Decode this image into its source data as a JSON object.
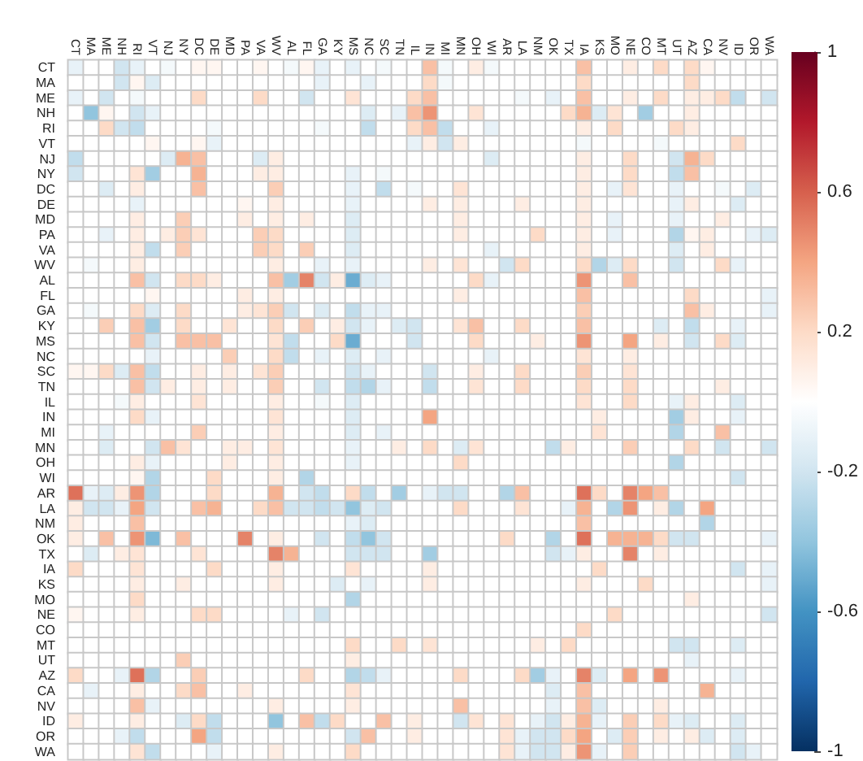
{
  "chart_data": {
    "type": "heatmap",
    "categories": [
      "CT",
      "MA",
      "ME",
      "NH",
      "RI",
      "VT",
      "NJ",
      "NY",
      "DC",
      "DE",
      "MD",
      "PA",
      "VA",
      "WV",
      "AL",
      "FL",
      "GA",
      "KY",
      "MS",
      "NC",
      "SC",
      "TN",
      "IL",
      "IN",
      "MI",
      "MN",
      "OH",
      "WI",
      "AR",
      "LA",
      "NM",
      "OK",
      "TX",
      "IA",
      "KS",
      "MO",
      "NE",
      "CO",
      "MT",
      "UT",
      "AZ",
      "CA",
      "NV",
      "ID",
      "OR",
      "WA"
    ],
    "y_categories": [
      "CT",
      "MA",
      "ME",
      "NH",
      "RI",
      "VT",
      "NJ",
      "NY",
      "DC",
      "DE",
      "MD",
      "PA",
      "VA",
      "WV",
      "AL",
      "FL",
      "GA",
      "KY",
      "MS",
      "NC",
      "SC",
      "TN",
      "IL",
      "IN",
      "MI",
      "MN",
      "OH",
      "WI",
      "AR",
      "LA",
      "NM",
      "OK",
      "TX",
      "IA",
      "KS",
      "MO",
      "NE",
      "CO",
      "MT",
      "UT",
      "AZ",
      "CA",
      "NV",
      "ID",
      "OR",
      "WA"
    ],
    "clim": [
      -1,
      1
    ],
    "cticks": [
      -1,
      -0.6,
      -0.2,
      0.2,
      0.6,
      1
    ],
    "cells": [
      [
        -0.1,
        0,
        0,
        -0.2,
        -0.1,
        0,
        -0.05,
        0,
        0.05,
        0.05,
        0,
        0,
        0.05,
        0,
        -0.05,
        0.05,
        -0.1,
        0,
        -0.1,
        0,
        -0.05,
        0,
        0,
        0.3,
        -0.05,
        0,
        0.1,
        -0.05,
        0,
        0,
        0,
        0,
        0,
        0.3,
        0,
        0,
        0.1,
        0,
        0.2,
        0,
        0.2,
        0.05,
        0,
        0,
        0,
        0
      ],
      [
        0,
        0,
        0,
        -0.2,
        0.05,
        -0.15,
        0,
        0,
        0,
        0,
        0,
        0,
        0,
        0,
        0,
        0,
        -0.1,
        0,
        0,
        -0.1,
        0,
        0,
        0,
        0.2,
        -0.05,
        0,
        0,
        0,
        0,
        0,
        0,
        0,
        0,
        0.2,
        0,
        0,
        0,
        0,
        0,
        0,
        0.2,
        0,
        0,
        0,
        0,
        0
      ],
      [
        -0.1,
        0,
        -0.2,
        0,
        -0.05,
        0,
        0,
        0,
        0.2,
        0,
        0,
        0,
        0.2,
        0,
        0,
        -0.2,
        0,
        0,
        0.15,
        0,
        0,
        0,
        0.2,
        0.3,
        0,
        0,
        0,
        0,
        0,
        -0.05,
        0,
        -0.1,
        0,
        0.3,
        0,
        0,
        0.1,
        0,
        0.2,
        0,
        0.1,
        0.1,
        0.2,
        -0.25,
        0,
        -0.2
      ],
      [
        0,
        -0.4,
        0.05,
        0,
        -0.2,
        -0.1,
        0,
        0,
        0,
        0,
        0,
        0,
        0,
        0,
        0,
        0,
        0,
        0,
        0,
        -0.15,
        0,
        -0.1,
        0.3,
        0.45,
        0,
        0,
        0.15,
        0,
        0,
        0,
        0,
        0,
        0.2,
        0.35,
        -0.15,
        0.15,
        0,
        -0.35,
        0,
        0,
        0.1,
        0,
        0,
        0,
        0,
        0
      ],
      [
        0,
        0,
        0.2,
        -0.2,
        -0.25,
        0,
        0,
        0,
        0,
        -0.05,
        0,
        0,
        0,
        0,
        0,
        0,
        -0.05,
        0,
        0,
        -0.25,
        0,
        0,
        0.2,
        0.3,
        -0.25,
        0,
        0,
        -0.1,
        0,
        0,
        0,
        0,
        0,
        0.1,
        0,
        0.2,
        0,
        0,
        0,
        0.2,
        0.1,
        0,
        0,
        0,
        0,
        0
      ],
      [
        0,
        0,
        0,
        0,
        0,
        0.05,
        0,
        0,
        0.05,
        -0.1,
        0,
        0,
        0,
        0,
        0,
        0,
        0,
        0,
        0,
        0,
        0,
        0,
        -0.1,
        0.1,
        -0.2,
        0.1,
        0,
        0,
        0,
        0,
        0,
        0,
        0,
        -0.05,
        0,
        0,
        0,
        0,
        -0.05,
        0,
        0,
        0,
        0,
        0.2,
        0,
        0
      ],
      [
        -0.25,
        0,
        0,
        0,
        0,
        0,
        -0.15,
        0.35,
        0.3,
        0,
        0,
        0,
        -0.15,
        0.1,
        0,
        0,
        0,
        0,
        0,
        0,
        0,
        0,
        0,
        0,
        0,
        0,
        0,
        -0.15,
        0,
        0,
        0,
        0,
        0,
        0.1,
        0,
        0,
        0.2,
        0,
        0,
        -0.2,
        0.35,
        0.2,
        0,
        0,
        0,
        0
      ],
      [
        -0.2,
        0,
        0,
        0,
        0.15,
        -0.35,
        0,
        0,
        0.35,
        0,
        0,
        0,
        0.1,
        0.1,
        0,
        0,
        0,
        0,
        -0.1,
        0,
        -0.05,
        0,
        0,
        0,
        0,
        0,
        0,
        0,
        0,
        0,
        0,
        0,
        0,
        0.1,
        0,
        0,
        0.2,
        0,
        0,
        -0.25,
        0.3,
        0,
        0,
        0,
        0,
        0
      ],
      [
        0,
        0,
        -0.15,
        0,
        0.1,
        0,
        0,
        0,
        0.3,
        0,
        0,
        0,
        0,
        0.25,
        0,
        0,
        0,
        0,
        -0.1,
        0,
        -0.25,
        0,
        -0.05,
        0,
        0,
        0.15,
        0,
        0,
        0,
        0,
        0,
        0,
        0,
        0.1,
        0,
        -0.1,
        0.15,
        0,
        0,
        -0.1,
        0,
        0,
        -0.05,
        0,
        -0.15,
        0
      ],
      [
        0,
        0,
        0,
        0,
        -0.1,
        0,
        0,
        0,
        0,
        0,
        0,
        0.05,
        0,
        0.1,
        0,
        0,
        0,
        0,
        -0.1,
        0,
        0,
        0,
        0,
        0.1,
        0,
        0.1,
        0,
        0,
        0,
        0.1,
        0,
        0,
        0,
        0.1,
        0,
        0,
        0,
        0,
        0,
        -0.1,
        0.1,
        0,
        0,
        -0.15,
        0,
        0
      ],
      [
        0,
        0,
        0,
        0,
        0.1,
        0,
        0,
        0.25,
        0,
        0,
        0,
        0.1,
        0,
        0.1,
        0,
        0.1,
        0,
        0,
        -0.15,
        0,
        0,
        0,
        0,
        0,
        0,
        0.1,
        0,
        0,
        0,
        0,
        0,
        0,
        0,
        0.1,
        0,
        -0.1,
        0,
        0,
        0,
        -0.1,
        0,
        0,
        0.1,
        0,
        0,
        0
      ],
      [
        0,
        0,
        -0.1,
        0,
        0.1,
        0,
        0.1,
        0.25,
        0.15,
        0,
        0,
        0,
        0.25,
        0.2,
        0,
        0,
        0,
        0,
        -0.15,
        0,
        0,
        0,
        0,
        0,
        0,
        0.1,
        0,
        0,
        0,
        0,
        0.2,
        0,
        0,
        0.1,
        0,
        -0.1,
        0,
        0,
        0,
        -0.3,
        0.05,
        0.1,
        0,
        0,
        -0.1,
        -0.15
      ],
      [
        0,
        0,
        0,
        0,
        0.1,
        -0.25,
        0,
        0.25,
        0,
        0,
        0,
        0,
        0.25,
        0.2,
        0,
        0.25,
        0,
        0,
        -0.15,
        0,
        0,
        0,
        0,
        0,
        0,
        0,
        0,
        -0.1,
        0,
        0,
        0,
        0,
        0,
        0.1,
        0,
        0,
        0,
        0,
        0,
        -0.15,
        0,
        0.1,
        0,
        0,
        0,
        0
      ],
      [
        0,
        -0.05,
        0,
        0,
        0.1,
        0,
        0,
        0,
        0,
        0,
        0,
        0,
        0,
        0.1,
        0,
        0,
        -0.1,
        0,
        -0.1,
        0,
        0,
        0,
        0,
        0.1,
        0,
        0.15,
        0,
        0,
        -0.2,
        0.2,
        0,
        0,
        0,
        0.2,
        -0.3,
        -0.15,
        0.2,
        0,
        0,
        -0.2,
        0,
        0,
        0.2,
        -0.1,
        0,
        0
      ],
      [
        0,
        0,
        0,
        0,
        0.3,
        -0.2,
        0,
        0.2,
        0.2,
        0.1,
        0,
        0,
        0,
        0.3,
        -0.35,
        0.5,
        -0.2,
        0.1,
        -0.5,
        -0.15,
        -0.1,
        0,
        0,
        0,
        0,
        0,
        0.2,
        -0.1,
        0,
        0,
        0,
        0,
        0,
        0.45,
        0,
        0,
        0.3,
        0,
        0,
        0,
        0,
        0,
        0,
        0,
        0,
        0
      ],
      [
        0,
        0,
        0,
        0,
        0,
        0.05,
        0,
        0,
        0,
        0,
        0,
        0.1,
        0,
        0.1,
        0,
        0,
        0,
        0,
        0,
        0,
        0,
        0,
        0,
        0,
        0,
        0.1,
        0,
        0,
        0,
        0,
        0,
        0,
        0,
        0.3,
        0,
        0,
        0,
        0,
        0,
        0,
        0.2,
        0,
        0,
        0,
        0,
        -0.1
      ],
      [
        0,
        -0.05,
        0,
        0,
        0.2,
        -0.15,
        0,
        0.2,
        0,
        0,
        0,
        0.1,
        0.15,
        0.25,
        -0.2,
        0,
        -0.15,
        0,
        -0.25,
        -0.1,
        -0.1,
        0,
        0,
        0,
        0,
        0,
        0,
        0,
        0,
        0,
        0,
        0,
        0,
        0.25,
        0,
        0,
        0,
        0,
        0,
        0,
        0.3,
        0.1,
        0,
        0,
        0,
        -0.1
      ],
      [
        0,
        0,
        0.25,
        0,
        0.3,
        -0.35,
        0,
        0.2,
        0,
        0,
        0.15,
        0,
        0,
        0.2,
        0,
        0.25,
        0,
        0.1,
        -0.2,
        -0.1,
        0,
        -0.15,
        -0.2,
        0,
        0,
        0.15,
        0.3,
        0,
        0,
        0.2,
        0,
        0,
        0,
        0.3,
        0,
        0,
        0,
        0,
        -0.15,
        0,
        -0.25,
        0,
        0,
        -0.1,
        0,
        0
      ],
      [
        0,
        0,
        0,
        0,
        0.3,
        -0.2,
        0,
        0.3,
        0.3,
        0.3,
        0,
        0,
        0,
        0.15,
        -0.25,
        0,
        0,
        0.2,
        -0.5,
        0,
        0,
        0,
        -0.2,
        0,
        0,
        0,
        0.2,
        0,
        0,
        0,
        0.1,
        0,
        0,
        0.45,
        0,
        0,
        0.4,
        0,
        0.1,
        0,
        -0.2,
        0,
        0.2,
        -0.15,
        0,
        0
      ],
      [
        0,
        0,
        0,
        0,
        0,
        -0.1,
        0,
        0,
        0,
        0,
        0.25,
        0,
        0,
        0.2,
        -0.25,
        0,
        -0.1,
        0,
        -0.15,
        0,
        -0.1,
        0,
        0,
        0,
        0,
        0,
        0,
        -0.1,
        0,
        0,
        0,
        0,
        0,
        0.15,
        0,
        0,
        0.1,
        0,
        0,
        0,
        0,
        0,
        0,
        0,
        0,
        0
      ],
      [
        0.05,
        0.05,
        0.2,
        -0.15,
        0.3,
        -0.25,
        0,
        0,
        0.1,
        0,
        0.1,
        0,
        0.15,
        0.25,
        0,
        0,
        0,
        0,
        -0.2,
        -0.1,
        0,
        0,
        0,
        -0.2,
        0,
        0,
        0.1,
        0,
        0,
        0.2,
        0,
        0,
        0,
        0.25,
        0,
        0,
        0.15,
        0,
        0,
        0,
        0,
        0,
        0,
        0,
        0,
        0
      ],
      [
        0,
        0,
        0,
        0,
        0.3,
        -0.2,
        0.1,
        0,
        0.1,
        0,
        0.1,
        0,
        0,
        0.25,
        0,
        0,
        -0.2,
        0,
        -0.25,
        -0.3,
        -0.1,
        0,
        0,
        -0.25,
        0,
        0,
        0.15,
        0,
        0,
        0.2,
        0,
        0,
        0,
        0.2,
        0,
        0,
        0.2,
        0,
        0,
        0,
        0,
        0,
        0.1,
        0,
        0,
        0
      ],
      [
        0,
        0,
        0,
        -0.05,
        0.1,
        0,
        0,
        0,
        0.15,
        0,
        0,
        0,
        0,
        0.1,
        0,
        0,
        -0.05,
        0,
        -0.15,
        0,
        0,
        0,
        0,
        0,
        0,
        0,
        0,
        0,
        0,
        0,
        0,
        0,
        0,
        0.15,
        0,
        0,
        0.2,
        0,
        0,
        -0.1,
        0.1,
        0,
        0,
        -0.15,
        0,
        0
      ],
      [
        0,
        0,
        0,
        0,
        0.2,
        -0.1,
        0,
        0,
        0,
        0,
        0,
        0,
        0,
        0.15,
        0,
        0,
        0,
        0,
        -0.15,
        0,
        0,
        0,
        0,
        0.4,
        0,
        0,
        0,
        0,
        0,
        0,
        0,
        0,
        0,
        0,
        0.1,
        0,
        0,
        0,
        0,
        -0.35,
        0.1,
        0,
        0,
        -0.1,
        0,
        0
      ],
      [
        0,
        0,
        -0.1,
        0,
        0,
        0,
        0,
        0,
        0.25,
        0,
        0,
        0,
        0,
        0.1,
        0,
        0,
        0,
        0,
        -0.15,
        0,
        -0.1,
        0,
        0,
        0,
        0,
        0,
        0,
        0,
        0,
        0,
        0,
        0,
        0,
        0,
        0.15,
        0,
        0,
        0,
        0,
        -0.3,
        0,
        0,
        0.3,
        0,
        0,
        0
      ],
      [
        0,
        0,
        -0.15,
        0,
        0,
        -0.2,
        0.3,
        0.15,
        0,
        0,
        0.1,
        0.1,
        0,
        0.15,
        0,
        0,
        0,
        0,
        -0.1,
        0,
        0,
        0.1,
        0,
        0.2,
        0,
        -0.15,
        0.15,
        0,
        0,
        0,
        0,
        -0.25,
        0.1,
        0,
        0,
        0,
        0.25,
        0,
        0,
        0,
        0.2,
        0,
        -0.2,
        0,
        0,
        -0.2
      ],
      [
        0,
        0,
        0,
        0,
        0.1,
        -0.1,
        0,
        0,
        0,
        0,
        0.1,
        0,
        0,
        0.1,
        0,
        0,
        0,
        0,
        -0.1,
        0,
        0,
        0,
        0,
        0,
        0,
        0.2,
        0,
        0,
        0,
        0,
        0,
        0,
        0,
        0,
        0,
        0,
        0,
        0,
        0,
        -0.3,
        0,
        0,
        0,
        0,
        0,
        0
      ],
      [
        0,
        0,
        0,
        0,
        0.05,
        -0.3,
        0,
        0,
        0,
        0.2,
        0,
        0,
        0,
        0.1,
        0,
        -0.3,
        0,
        0,
        0,
        0,
        0,
        0,
        0,
        0,
        0,
        0,
        0,
        0,
        0,
        0,
        0,
        0,
        0,
        0,
        0,
        0,
        0,
        0,
        0,
        0,
        0,
        0,
        0,
        -0.2,
        0,
        0
      ],
      [
        0.55,
        -0.1,
        -0.15,
        0.1,
        0.45,
        -0.3,
        0,
        0,
        0,
        0.2,
        0,
        0,
        0,
        0.35,
        0,
        -0.2,
        -0.25,
        0,
        0.2,
        -0.25,
        0,
        -0.35,
        0,
        -0.1,
        -0.2,
        -0.2,
        0,
        0,
        -0.3,
        0.3,
        0,
        0,
        0,
        0.55,
        0.2,
        0,
        0.5,
        0.4,
        0.3,
        0,
        0,
        0,
        0,
        0,
        0,
        0
      ],
      [
        0.1,
        -0.2,
        -0.2,
        -0.1,
        0.4,
        -0.2,
        0,
        0,
        0.3,
        0.35,
        0,
        0,
        0.2,
        0.3,
        -0.2,
        -0.2,
        -0.25,
        -0.2,
        -0.4,
        -0.15,
        -0.2,
        0,
        0,
        0,
        0,
        0.2,
        0,
        0,
        0,
        0.15,
        0,
        0,
        -0.1,
        0.35,
        0,
        -0.3,
        0.45,
        0,
        0.1,
        -0.3,
        0,
        0.4,
        0,
        0,
        0,
        0
      ],
      [
        0.1,
        0,
        0,
        0,
        0.3,
        0,
        0,
        0,
        0,
        0,
        0,
        0,
        0,
        0,
        0,
        0,
        0,
        0,
        -0.1,
        -0.15,
        0,
        0,
        0,
        0,
        0,
        0,
        0,
        0,
        0,
        0,
        0,
        0,
        0,
        0.3,
        0,
        0,
        0,
        0,
        0,
        0,
        0,
        -0.3,
        0,
        0,
        0,
        0
      ],
      [
        0.1,
        0,
        0.3,
        0,
        0.45,
        -0.45,
        0,
        0.3,
        0,
        0,
        0,
        0.5,
        0,
        0.1,
        0,
        0,
        -0.2,
        0,
        -0.25,
        -0.4,
        -0.2,
        0,
        0,
        0,
        0,
        0,
        0,
        0,
        0.2,
        0,
        0,
        -0.3,
        0,
        0.55,
        0,
        0.35,
        0.35,
        0.35,
        0.2,
        -0.2,
        -0.2,
        0,
        0,
        0,
        0,
        -0.1
      ],
      [
        0,
        -0.15,
        0,
        0.1,
        0.15,
        0,
        0,
        0,
        0.15,
        0,
        0,
        0,
        0,
        0.5,
        0.35,
        0,
        0,
        0,
        -0.2,
        -0.2,
        -0.2,
        0,
        0,
        -0.35,
        0,
        0,
        0,
        0,
        0,
        0,
        0,
        -0.2,
        -0.1,
        0.1,
        0,
        0,
        0.5,
        0,
        0.1,
        0,
        0,
        0,
        0,
        0,
        0,
        0
      ],
      [
        0.2,
        0,
        0,
        0,
        0.15,
        0,
        0,
        0,
        0,
        0.2,
        0,
        0,
        0,
        0.1,
        0,
        0,
        0,
        0,
        0.15,
        0,
        0,
        0,
        0,
        0.1,
        0,
        0,
        0,
        0,
        0,
        0,
        0,
        0,
        0,
        0,
        0.2,
        0,
        0,
        0,
        0,
        0,
        0,
        0,
        0,
        -0.2,
        0,
        -0.1
      ],
      [
        0,
        0,
        0,
        0,
        0.1,
        0,
        0,
        0.1,
        0,
        0,
        0,
        0,
        0,
        0.1,
        0,
        0,
        0,
        -0.15,
        0,
        -0.1,
        0,
        0,
        0,
        0.1,
        0,
        0,
        0,
        0,
        0,
        0,
        0,
        0,
        0,
        0.1,
        0,
        0,
        0,
        0.2,
        0,
        0,
        0,
        0,
        0,
        0,
        0,
        -0.1
      ],
      [
        0,
        0,
        0,
        0,
        0.2,
        0,
        0,
        0,
        0,
        0,
        0,
        0,
        0,
        0,
        0,
        0,
        0,
        0,
        -0.3,
        0,
        0,
        0,
        0,
        0,
        0,
        0,
        0,
        0,
        0,
        0,
        0,
        0,
        0,
        0,
        0,
        0,
        0,
        0,
        0,
        0,
        0.1,
        0,
        0,
        0,
        0,
        0
      ],
      [
        0.05,
        0,
        0,
        0,
        0.1,
        0,
        0,
        0,
        0.2,
        0.2,
        0,
        0,
        0,
        0,
        -0.1,
        0,
        -0.2,
        0,
        0,
        0,
        0,
        0,
        0,
        0,
        0,
        0,
        0,
        0,
        0,
        0,
        0,
        0,
        0,
        0,
        0,
        0.2,
        0,
        0,
        0,
        0,
        0,
        0,
        0,
        0,
        0,
        -0.2
      ],
      [
        0,
        0,
        0,
        0,
        0,
        0,
        0,
        0,
        0,
        0,
        0,
        0,
        0,
        0,
        0,
        0,
        0,
        0,
        0,
        0,
        0,
        0,
        0,
        0,
        0,
        0,
        0,
        0,
        0,
        0,
        0,
        0,
        0,
        0.2,
        0,
        0,
        0,
        0,
        0,
        0,
        0,
        0,
        0,
        0,
        0,
        0
      ],
      [
        0,
        0,
        0,
        0,
        0,
        0,
        0,
        0,
        0,
        0,
        0,
        0,
        0,
        0,
        0,
        0,
        0,
        0,
        0.2,
        0,
        0,
        0.2,
        0,
        0.15,
        0,
        0,
        0,
        0,
        0,
        0,
        0.1,
        0,
        0.2,
        0,
        0,
        0,
        0,
        0,
        0,
        -0.2,
        -0.2,
        0,
        0,
        -0.15,
        0,
        0
      ],
      [
        0,
        0,
        0,
        0,
        0,
        0,
        0,
        0.25,
        0,
        0,
        0,
        0,
        0,
        0,
        0,
        0,
        0,
        0,
        0.1,
        0,
        0,
        0,
        0,
        0,
        0,
        0,
        0,
        0,
        0,
        0,
        0,
        0,
        0,
        0,
        0,
        0,
        0,
        0,
        0,
        0,
        -0.1,
        0,
        0,
        0,
        0,
        0
      ],
      [
        0.2,
        0,
        0,
        -0.1,
        0.55,
        -0.3,
        0,
        0,
        0.25,
        0,
        0,
        0,
        0,
        0,
        0,
        0.2,
        0,
        0,
        -0.3,
        -0.25,
        -0.1,
        0,
        0,
        0,
        0,
        0.2,
        0,
        0,
        0,
        0.2,
        -0.35,
        -0.1,
        0,
        0.5,
        -0.15,
        0,
        0.4,
        0,
        0.45,
        0,
        0,
        0,
        0,
        -0.1,
        0,
        0
      ],
      [
        0,
        -0.1,
        0,
        0,
        0.1,
        0,
        0,
        0.2,
        0.3,
        0,
        0,
        0.1,
        0,
        0,
        0,
        0,
        0,
        0,
        0.15,
        0,
        0,
        0,
        0,
        0,
        0,
        0,
        0,
        0,
        0,
        0,
        0,
        -0.15,
        0,
        0.3,
        0,
        0,
        0,
        0,
        0,
        0,
        0,
        0.35,
        0,
        0,
        0,
        0
      ],
      [
        0,
        0,
        0,
        0,
        0.3,
        -0.1,
        0,
        0,
        0,
        0,
        0,
        0,
        0,
        0.1,
        0,
        0,
        0,
        0,
        0.1,
        0,
        0,
        0,
        0,
        0,
        0,
        0.3,
        0,
        0,
        0,
        0,
        0,
        -0.1,
        0,
        0.3,
        -0.15,
        0,
        0,
        0,
        0.1,
        0,
        0,
        0,
        0,
        0,
        0,
        0
      ],
      [
        0.1,
        0,
        0,
        0,
        0.1,
        0,
        0,
        -0.15,
        0.2,
        -0.25,
        0,
        0,
        0,
        -0.4,
        0,
        0.3,
        -0.25,
        0.2,
        0,
        0,
        0.3,
        0,
        0.1,
        0,
        0,
        -0.2,
        0.15,
        0,
        0.15,
        0,
        -0.1,
        -0.2,
        0.1,
        0.35,
        -0.1,
        0,
        0.25,
        0,
        0.2,
        -0.1,
        -0.15,
        0,
        0,
        -0.15,
        0,
        0
      ],
      [
        0,
        0,
        0,
        -0.1,
        -0.25,
        0,
        0,
        0,
        0.4,
        -0.25,
        0,
        0,
        0,
        0,
        0,
        0,
        0,
        0,
        -0.2,
        0.3,
        0,
        0,
        0.1,
        0,
        0,
        0,
        0,
        0,
        0.15,
        -0.1,
        -0.2,
        -0.2,
        0.2,
        0.4,
        0,
        -0.15,
        0.25,
        0,
        0.1,
        0,
        0.1,
        -0.15,
        0,
        -0.15,
        0,
        0
      ],
      [
        0,
        0,
        0,
        0,
        0.15,
        -0.25,
        0,
        0,
        0,
        -0.1,
        0,
        0,
        0,
        0.1,
        0,
        0,
        0,
        0,
        0.2,
        0,
        0,
        0,
        0,
        0,
        0,
        0,
        0,
        0,
        0.15,
        -0.1,
        -0.2,
        -0.2,
        0.1,
        0.45,
        -0.1,
        0,
        0.25,
        0,
        0,
        0,
        0,
        0,
        0,
        -0.2,
        -0.1,
        0
      ]
    ]
  }
}
